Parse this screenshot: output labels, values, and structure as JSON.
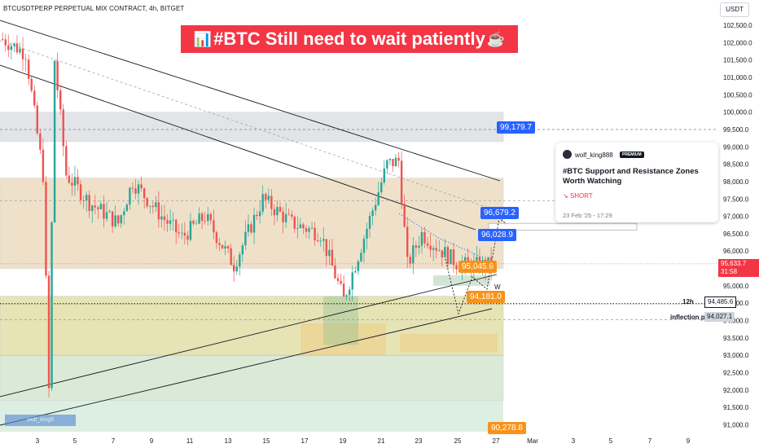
{
  "header": {
    "symbol_line": "BTCUSDTPERP PERPETUAL MIX CONTRACT, 4h, BITGET",
    "currency_button": "USDT"
  },
  "title": {
    "icon_left": "📊",
    "text": "#BTC Still need to wait patiently",
    "icon_right": "☕"
  },
  "idea_card": {
    "author": "wolf_king888",
    "badge": "PREMIUM",
    "title": "#BTC Support and Resistance Zones Worth Watching",
    "direction": "SHORT",
    "date": "23 Feb '25 - 17:29"
  },
  "watermark": "wolf_king8",
  "chart_data": {
    "type": "candlestick",
    "timeframe": "4h",
    "y_range": [
      90800,
      102900
    ],
    "y_ticks": [
      "102,500.0",
      "102,000.0",
      "101,500.0",
      "101,000.0",
      "100,500.0",
      "100,000.0",
      "99,500.0",
      "99,000.0",
      "98,500.0",
      "98,000.0",
      "97,500.0",
      "97,000.0",
      "96,500.0",
      "96,000.0",
      "95,500.0",
      "95,000.0",
      "94,500.0",
      "94,000.0",
      "93,500.0",
      "93,000.0",
      "92,500.0",
      "92,000.0",
      "91,500.0",
      "91,000.0"
    ],
    "x_ticks": [
      "3",
      "5",
      "7",
      "9",
      "11",
      "13",
      "15",
      "17",
      "19",
      "21",
      "23",
      "25",
      "27",
      "Mar",
      "3",
      "5",
      "7",
      "9"
    ],
    "current_price": "95,633.7",
    "countdown": "31:58",
    "levels": [
      {
        "label": "99,179.7",
        "value": 99179.7,
        "color": "blue"
      },
      {
        "label": "96,679.2",
        "value": 96679.2,
        "color": "blue"
      },
      {
        "label": "96,028.9",
        "value": 96028.9,
        "color": "blue"
      },
      {
        "label": "95,045.6",
        "value": 95045.6,
        "color": "orange"
      },
      {
        "label": "94,181.0",
        "value": 94181.0,
        "color": "orange"
      },
      {
        "label": "90,278.8",
        "value": 90278.8,
        "color": "orange"
      }
    ],
    "axis_annotations": [
      {
        "label": "12h",
        "price": "94,485.6"
      },
      {
        "label": "inflection point",
        "price": "94,027.1"
      }
    ],
    "pattern_label": "W",
    "colors": {
      "up": "#26a69a",
      "down": "#ef5350"
    }
  }
}
